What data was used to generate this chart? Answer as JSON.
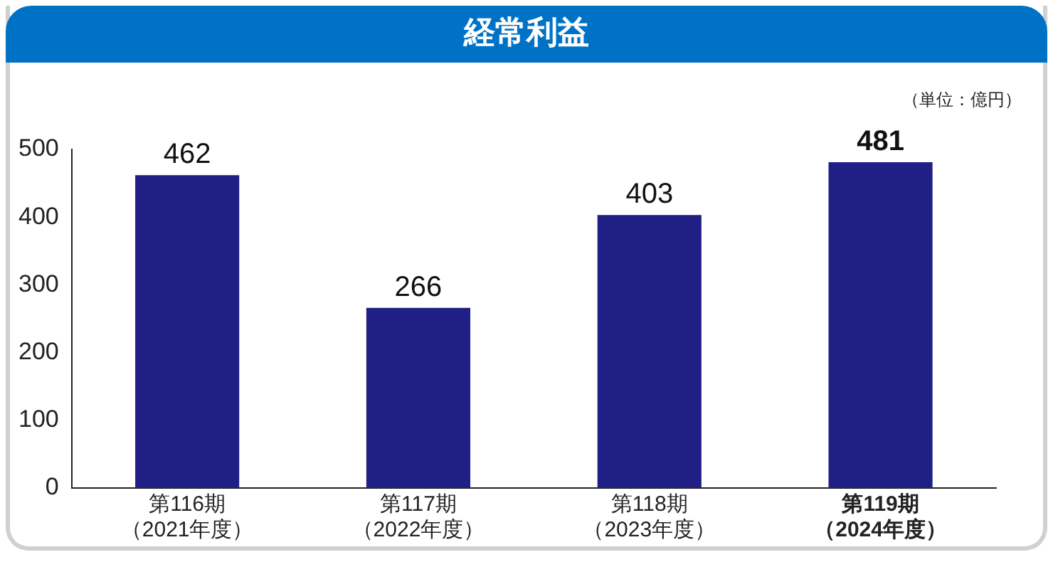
{
  "chart_data": {
    "type": "bar",
    "title": "経常利益",
    "annotations": [
      "（単位：億円）"
    ],
    "categories": [
      "第116期（2021年度）",
      "第117期（2022年度）",
      "第118期（2023年度）",
      "第119期（2024年度）"
    ],
    "values": [
      462,
      266,
      403,
      481
    ],
    "color": "#1f1f86",
    "ylim": [
      0,
      500
    ],
    "yticks": [
      0,
      100,
      200,
      300,
      400,
      500
    ],
    "grid": false,
    "legend": false,
    "data_labels": true
  }
}
